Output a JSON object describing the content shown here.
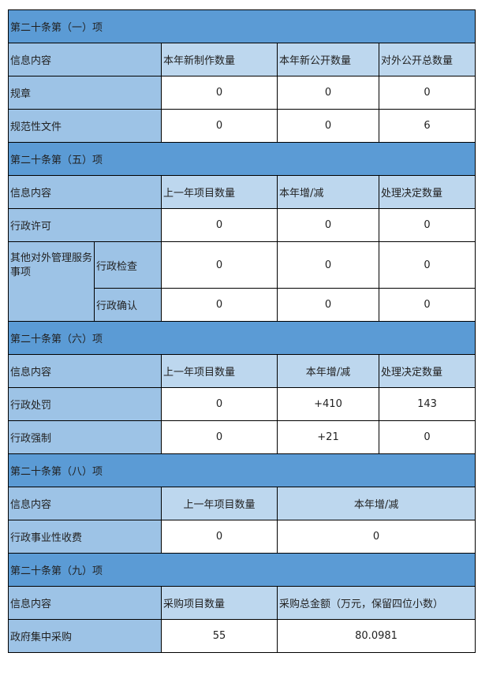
{
  "s1": {
    "title": "第二十条第（一）项",
    "headers": [
      "信息内容",
      "本年新制作数量",
      "本年新公开数量",
      "对外公开总数量"
    ],
    "rows": [
      {
        "label": "规章",
        "values": [
          "0",
          "0",
          "0"
        ]
      },
      {
        "label": "规范性文件",
        "values": [
          "0",
          "0",
          "6"
        ]
      }
    ]
  },
  "s5": {
    "title": "第二十条第（五）项",
    "headers": [
      "信息内容",
      "上一年项目数量",
      "本年增/减",
      "处理决定数量"
    ],
    "row1": {
      "label": "行政许可",
      "values": [
        "0",
        "0",
        "0"
      ]
    },
    "group": "其他对外管理服务事项",
    "sub": [
      {
        "label": "行政检查",
        "values": [
          "0",
          "0",
          "0"
        ]
      },
      {
        "label": "行政确认",
        "values": [
          "0",
          "0",
          "0"
        ]
      }
    ]
  },
  "s6": {
    "title": "第二十条第（六）项",
    "headers": [
      "信息内容",
      "上一年项目数量",
      "本年增/减",
      "处理决定数量"
    ],
    "rows": [
      {
        "label": "行政处罚",
        "values": [
          "0",
          "+410",
          "143"
        ]
      },
      {
        "label": "行政强制",
        "values": [
          "0",
          "+21",
          "0"
        ]
      }
    ]
  },
  "s8": {
    "title": "第二十条第（八）项",
    "headers": [
      "信息内容",
      "上一年项目数量",
      "本年增/减"
    ],
    "row": {
      "label": "行政事业性收费",
      "values": [
        "0",
        "0"
      ]
    }
  },
  "s9": {
    "title": "第二十条第（九）项",
    "headers": [
      "信息内容",
      "采购项目数量",
      "采购总金额（万元，保留四位小数）"
    ],
    "row": {
      "label": "政府集中采购",
      "values": [
        "55",
        "80.0981"
      ]
    }
  },
  "colors": {
    "section": "#5b9bd5",
    "label": "#9dc3e6",
    "header": "#bdd7ee"
  }
}
